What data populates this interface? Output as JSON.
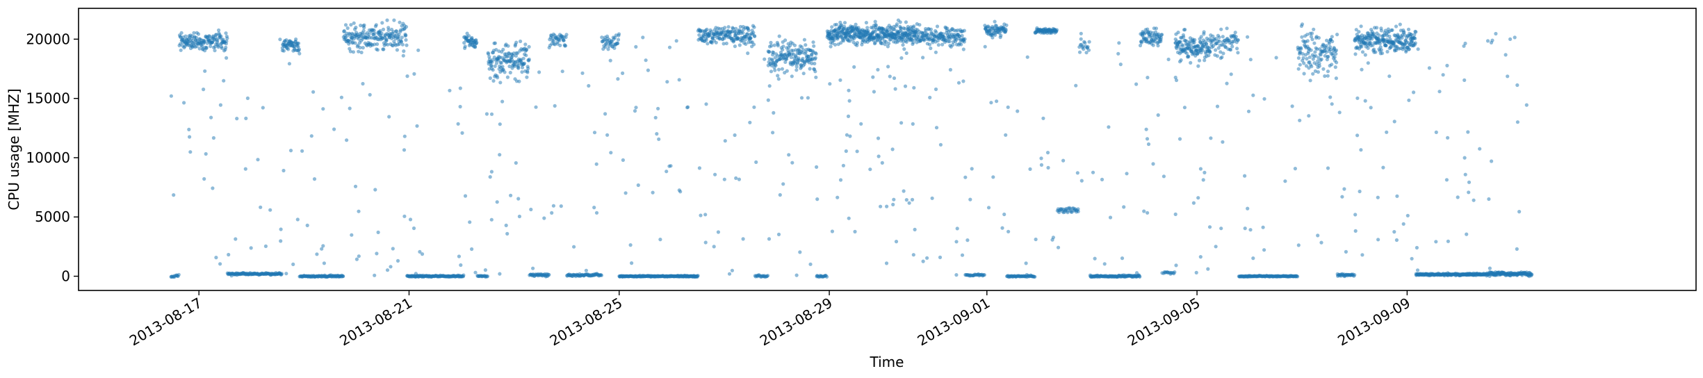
{
  "chart_data": {
    "type": "scatter",
    "title": "",
    "xlabel": "Time",
    "ylabel": "CPU usage [MHZ]",
    "xlim": [
      "2013-08-14T17:00",
      "2013-09-14T12:00"
    ],
    "ylim": [
      -1200,
      22600
    ],
    "x_ticks": [
      "2013-08-17",
      "2013-08-21",
      "2013-08-25",
      "2013-08-29",
      "2013-09-01",
      "2013-09-05",
      "2013-09-09"
    ],
    "y_ticks": [
      0,
      5000,
      10000,
      15000,
      20000
    ],
    "grid": false,
    "legend": "none",
    "point_color": "#1f77b4",
    "point_alpha": 0.5,
    "series": [
      {
        "segments": [
          {
            "start": "2013-08-16T11:00",
            "end": "2013-08-16T15:00",
            "level": 0,
            "spread": 150,
            "density": 20
          },
          {
            "start": "2013-08-16T15:00",
            "end": "2013-08-17T13:00",
            "level": 19800,
            "spread": 600,
            "density": 40
          },
          {
            "start": "2013-08-17T13:00",
            "end": "2013-08-18T00:00",
            "level": 200,
            "spread": 80,
            "density": 30
          },
          {
            "start": "2013-08-18T00:00",
            "end": "2013-08-18T14:00",
            "level": 200,
            "spread": 60,
            "density": 30
          },
          {
            "start": "2013-08-18T14:00",
            "end": "2013-08-18T22:00",
            "level": 19500,
            "spread": 500,
            "density": 40
          },
          {
            "start": "2013-08-18T22:00",
            "end": "2013-08-19T18:00",
            "level": 0,
            "spread": 60,
            "density": 30
          },
          {
            "start": "2013-08-19T18:00",
            "end": "2013-08-20T23:00",
            "level": 20300,
            "spread": 900,
            "density": 40
          },
          {
            "start": "2013-08-20T23:00",
            "end": "2013-08-22T01:00",
            "level": 0,
            "spread": 60,
            "density": 30
          },
          {
            "start": "2013-08-22T01:00",
            "end": "2013-08-22T07:00",
            "level": 19800,
            "spread": 400,
            "density": 40
          },
          {
            "start": "2013-08-22T07:00",
            "end": "2013-08-22T12:00",
            "level": 0,
            "spread": 60,
            "density": 20
          },
          {
            "start": "2013-08-22T12:00",
            "end": "2013-08-23T07:00",
            "level": 18200,
            "spread": 1200,
            "density": 45
          },
          {
            "start": "2013-08-23T07:00",
            "end": "2013-08-23T16:00",
            "level": 100,
            "spread": 80,
            "density": 25
          },
          {
            "start": "2013-08-23T16:00",
            "end": "2013-08-24T00:00",
            "level": 20000,
            "spread": 500,
            "density": 30
          },
          {
            "start": "2013-08-24T00:00",
            "end": "2013-08-24T16:00",
            "level": 100,
            "spread": 80,
            "density": 25
          },
          {
            "start": "2013-08-24T16:00",
            "end": "2013-08-25T00:00",
            "level": 19800,
            "spread": 500,
            "density": 30
          },
          {
            "start": "2013-08-25T00:00",
            "end": "2013-08-26T12:00",
            "level": 0,
            "spread": 40,
            "density": 40
          },
          {
            "start": "2013-08-26T12:00",
            "end": "2013-08-27T14:00",
            "level": 20300,
            "spread": 600,
            "density": 40
          },
          {
            "start": "2013-08-27T14:00",
            "end": "2013-08-27T20:00",
            "level": 0,
            "spread": 60,
            "density": 20
          },
          {
            "start": "2013-08-27T20:00",
            "end": "2013-08-28T18:00",
            "level": 18600,
            "spread": 1100,
            "density": 45
          },
          {
            "start": "2013-08-28T18:00",
            "end": "2013-08-28T23:00",
            "level": 0,
            "spread": 60,
            "density": 20
          },
          {
            "start": "2013-08-28T23:00",
            "end": "2013-08-30T16:00",
            "level": 20400,
            "spread": 700,
            "density": 60
          },
          {
            "start": "2013-08-30T16:00",
            "end": "2013-08-31T14:00",
            "level": 20200,
            "spread": 700,
            "density": 40
          },
          {
            "start": "2013-08-31T14:00",
            "end": "2013-08-31T23:00",
            "level": 100,
            "spread": 60,
            "density": 20
          },
          {
            "start": "2013-08-31T23:00",
            "end": "2013-09-01T09:00",
            "level": 20800,
            "spread": 500,
            "density": 40
          },
          {
            "start": "2013-09-01T09:00",
            "end": "2013-09-01T22:00",
            "level": 0,
            "spread": 60,
            "density": 25
          },
          {
            "start": "2013-09-01T22:00",
            "end": "2013-09-02T08:00",
            "level": 20700,
            "spread": 200,
            "density": 40
          },
          {
            "start": "2013-09-02T08:00",
            "end": "2013-09-02T18:00",
            "level": 5600,
            "spread": 200,
            "density": 20
          },
          {
            "start": "2013-09-02T18:00",
            "end": "2013-09-02T23:00",
            "level": 19300,
            "spread": 600,
            "density": 20
          },
          {
            "start": "2013-09-02T23:00",
            "end": "2013-09-03T22:00",
            "level": 0,
            "spread": 60,
            "density": 30
          },
          {
            "start": "2013-09-03T22:00",
            "end": "2013-09-04T08:00",
            "level": 20100,
            "spread": 600,
            "density": 40
          },
          {
            "start": "2013-09-04T08:00",
            "end": "2013-09-04T14:00",
            "level": 300,
            "spread": 80,
            "density": 15
          },
          {
            "start": "2013-09-04T14:00",
            "end": "2013-09-05T06:00",
            "level": 19300,
            "spread": 900,
            "density": 50
          },
          {
            "start": "2013-09-05T06:00",
            "end": "2013-09-05T19:00",
            "level": 19700,
            "spread": 800,
            "density": 30
          },
          {
            "start": "2013-09-05T19:00",
            "end": "2013-09-06T22:00",
            "level": 0,
            "spread": 40,
            "density": 30
          },
          {
            "start": "2013-09-06T22:00",
            "end": "2013-09-07T16:00",
            "level": 18800,
            "spread": 1500,
            "density": 40
          },
          {
            "start": "2013-09-07T16:00",
            "end": "2013-09-08T00:00",
            "level": 100,
            "spread": 80,
            "density": 25
          },
          {
            "start": "2013-09-08T00:00",
            "end": "2013-09-09T04:00",
            "level": 19900,
            "spread": 800,
            "density": 50
          },
          {
            "start": "2013-09-09T04:00",
            "end": "2013-09-10T12:00",
            "level": 150,
            "spread": 70,
            "density": 40
          },
          {
            "start": "2013-09-10T12:00",
            "end": "2013-09-11T09:00",
            "level": 200,
            "spread": 120,
            "density": 40
          }
        ]
      }
    ]
  }
}
